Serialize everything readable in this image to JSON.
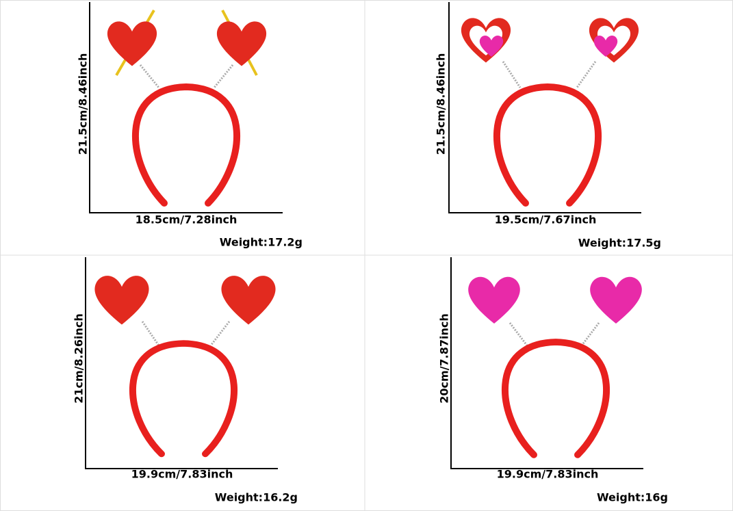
{
  "panels": [
    {
      "height": "21.5cm/8.46inch",
      "width": "18.5cm/7.28inch",
      "weight": "Weight:17.2g"
    },
    {
      "height": "21.5cm/8.46inch",
      "width": "19.5cm/7.67inch",
      "weight": "Weight:17.5g"
    },
    {
      "height": "21cm/8.26inch",
      "width": "19.9cm/7.83inch",
      "weight": "Weight:16.2g"
    },
    {
      "height": "20cm/7.87inch",
      "width": "19.9cm/7.83inch",
      "weight": "Weight:16g"
    }
  ]
}
